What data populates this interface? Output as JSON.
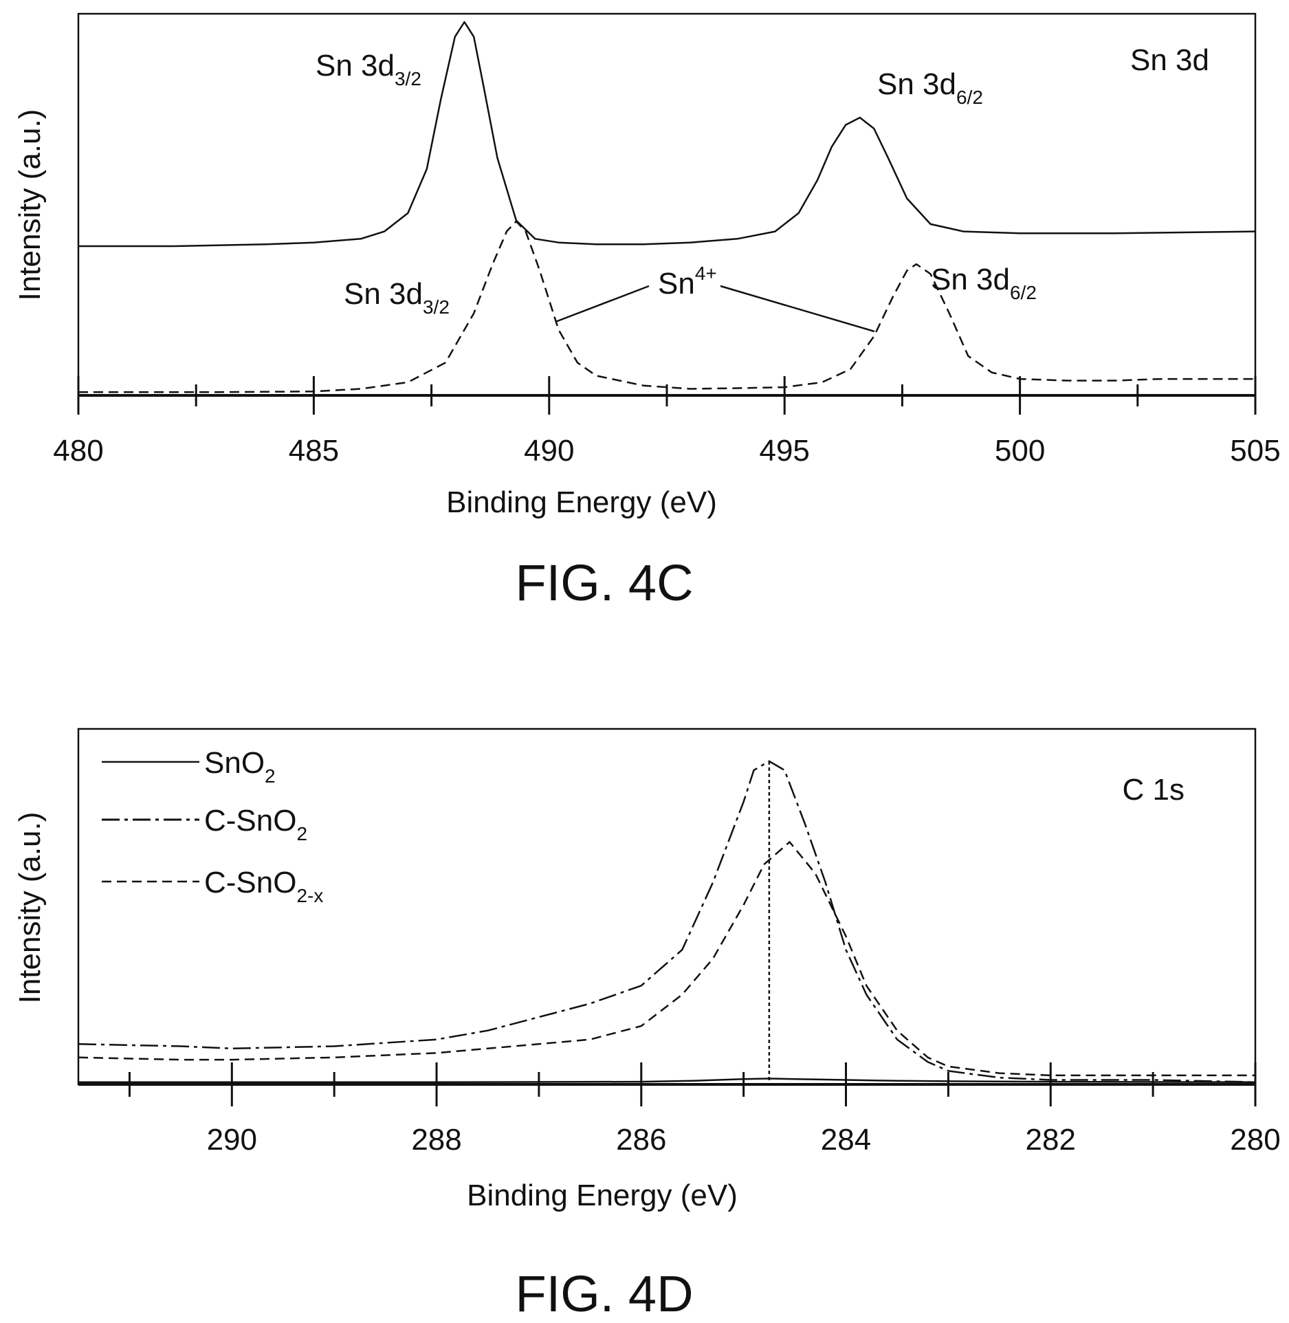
{
  "chart_data": [
    {
      "type": "line",
      "figure_label": "FIG. 4C",
      "xlabel": "Binding Energy (eV)",
      "ylabel": "Intensity (a.u.)",
      "xlim": [
        480,
        505
      ],
      "x_ticks": [
        480,
        485,
        490,
        495,
        500,
        505
      ],
      "x_tick_labels": [
        "480",
        "485",
        "490",
        "495",
        "500",
        "505"
      ],
      "corner_label": "Sn 3d",
      "series": [
        {
          "style": "solid",
          "x": [
            480,
            482,
            484,
            485,
            486,
            486.5,
            487,
            487.4,
            487.7,
            488,
            488.2,
            488.4,
            488.6,
            488.9,
            489.3,
            489.7,
            490.2,
            491,
            492,
            493,
            494,
            494.8,
            495.3,
            495.7,
            496,
            496.3,
            496.6,
            496.9,
            497.2,
            497.6,
            498.1,
            498.8,
            500,
            502,
            505
          ],
          "y": [
            0.39,
            0.39,
            0.395,
            0.4,
            0.41,
            0.43,
            0.48,
            0.6,
            0.79,
            0.96,
            1.0,
            0.96,
            0.83,
            0.63,
            0.46,
            0.41,
            0.4,
            0.395,
            0.395,
            0.4,
            0.41,
            0.43,
            0.48,
            0.57,
            0.66,
            0.72,
            0.74,
            0.71,
            0.63,
            0.52,
            0.45,
            0.43,
            0.425,
            0.425,
            0.43
          ]
        },
        {
          "style": "dashed",
          "x": [
            480,
            483,
            485,
            486,
            487,
            487.8,
            488.4,
            488.8,
            489.1,
            489.3,
            489.5,
            489.8,
            490.2,
            490.6,
            491,
            492,
            493,
            494,
            495,
            495.8,
            496.4,
            496.9,
            497.3,
            497.6,
            497.8,
            498.1,
            498.5,
            498.9,
            499.4,
            500,
            501,
            502,
            503,
            505
          ],
          "y": [
            0.01,
            0.01,
            0.012,
            0.02,
            0.04,
            0.1,
            0.25,
            0.4,
            0.5,
            0.53,
            0.5,
            0.38,
            0.2,
            0.1,
            0.06,
            0.03,
            0.02,
            0.022,
            0.025,
            0.04,
            0.08,
            0.18,
            0.3,
            0.38,
            0.4,
            0.37,
            0.25,
            0.12,
            0.07,
            0.05,
            0.045,
            0.045,
            0.05,
            0.05
          ]
        }
      ],
      "annotations": [
        {
          "base": "Sn 3d",
          "sub": "3/2"
        },
        {
          "base": "Sn 3d",
          "sub": "6/2"
        },
        {
          "base": "Sn 3d",
          "sub": "3/2"
        },
        {
          "base": "Sn 3d",
          "sub": "6/2"
        },
        {
          "base": "Sn",
          "sup": "4+"
        }
      ]
    },
    {
      "type": "line",
      "figure_label": "FIG. 4D",
      "xlabel": "Binding Energy (eV)",
      "ylabel": "Intensity (a.u.)",
      "xlim": [
        291.5,
        280
      ],
      "x_major_ticks": [
        290,
        288,
        286,
        284,
        282,
        280
      ],
      "x_tick_labels": [
        "290",
        "288",
        "286",
        "284",
        "282",
        "280"
      ],
      "x_minor_ticks": [
        291,
        289,
        287,
        285,
        283,
        281
      ],
      "corner_label": "C 1s",
      "reference_line_x": 284.75,
      "legend_position": "top-left",
      "series": [
        {
          "name": "SnO",
          "name_sub": "2",
          "style": "solid",
          "x": [
            291.5,
            290,
            288,
            286,
            285.5,
            285,
            284.75,
            284.5,
            284,
            283.5,
            283,
            282,
            280
          ],
          "y": [
            0.005,
            0.005,
            0.005,
            0.006,
            0.008,
            0.012,
            0.013,
            0.012,
            0.01,
            0.008,
            0.007,
            0.006,
            0.005
          ]
        },
        {
          "name": "C-SnO",
          "name_sub": "2",
          "style": "dash-dot",
          "x": [
            291.5,
            290.5,
            290,
            289,
            288,
            287.5,
            287,
            286.5,
            286,
            285.6,
            285.3,
            285,
            284.9,
            284.75,
            284.6,
            284.4,
            284.2,
            284,
            283.8,
            283.5,
            283.2,
            283,
            282.5,
            282,
            281,
            280
          ],
          "y": [
            0.09,
            0.085,
            0.08,
            0.085,
            0.1,
            0.12,
            0.15,
            0.18,
            0.22,
            0.3,
            0.45,
            0.63,
            0.7,
            0.72,
            0.7,
            0.58,
            0.45,
            0.3,
            0.2,
            0.1,
            0.05,
            0.03,
            0.015,
            0.01,
            0.01,
            0.005
          ]
        },
        {
          "name": "C-SnO",
          "name_sub": "2-x",
          "style": "dashed",
          "x": [
            291.5,
            290.5,
            290,
            289,
            288,
            287.5,
            287,
            286.5,
            286,
            285.6,
            285.3,
            285,
            284.8,
            284.55,
            284.3,
            284,
            283.8,
            283.5,
            283.2,
            283,
            282.5,
            282,
            281,
            280
          ],
          "y": [
            0.06,
            0.055,
            0.055,
            0.06,
            0.07,
            0.08,
            0.09,
            0.1,
            0.13,
            0.2,
            0.28,
            0.4,
            0.49,
            0.54,
            0.47,
            0.33,
            0.22,
            0.12,
            0.06,
            0.04,
            0.025,
            0.02,
            0.02,
            0.02
          ]
        }
      ]
    }
  ]
}
